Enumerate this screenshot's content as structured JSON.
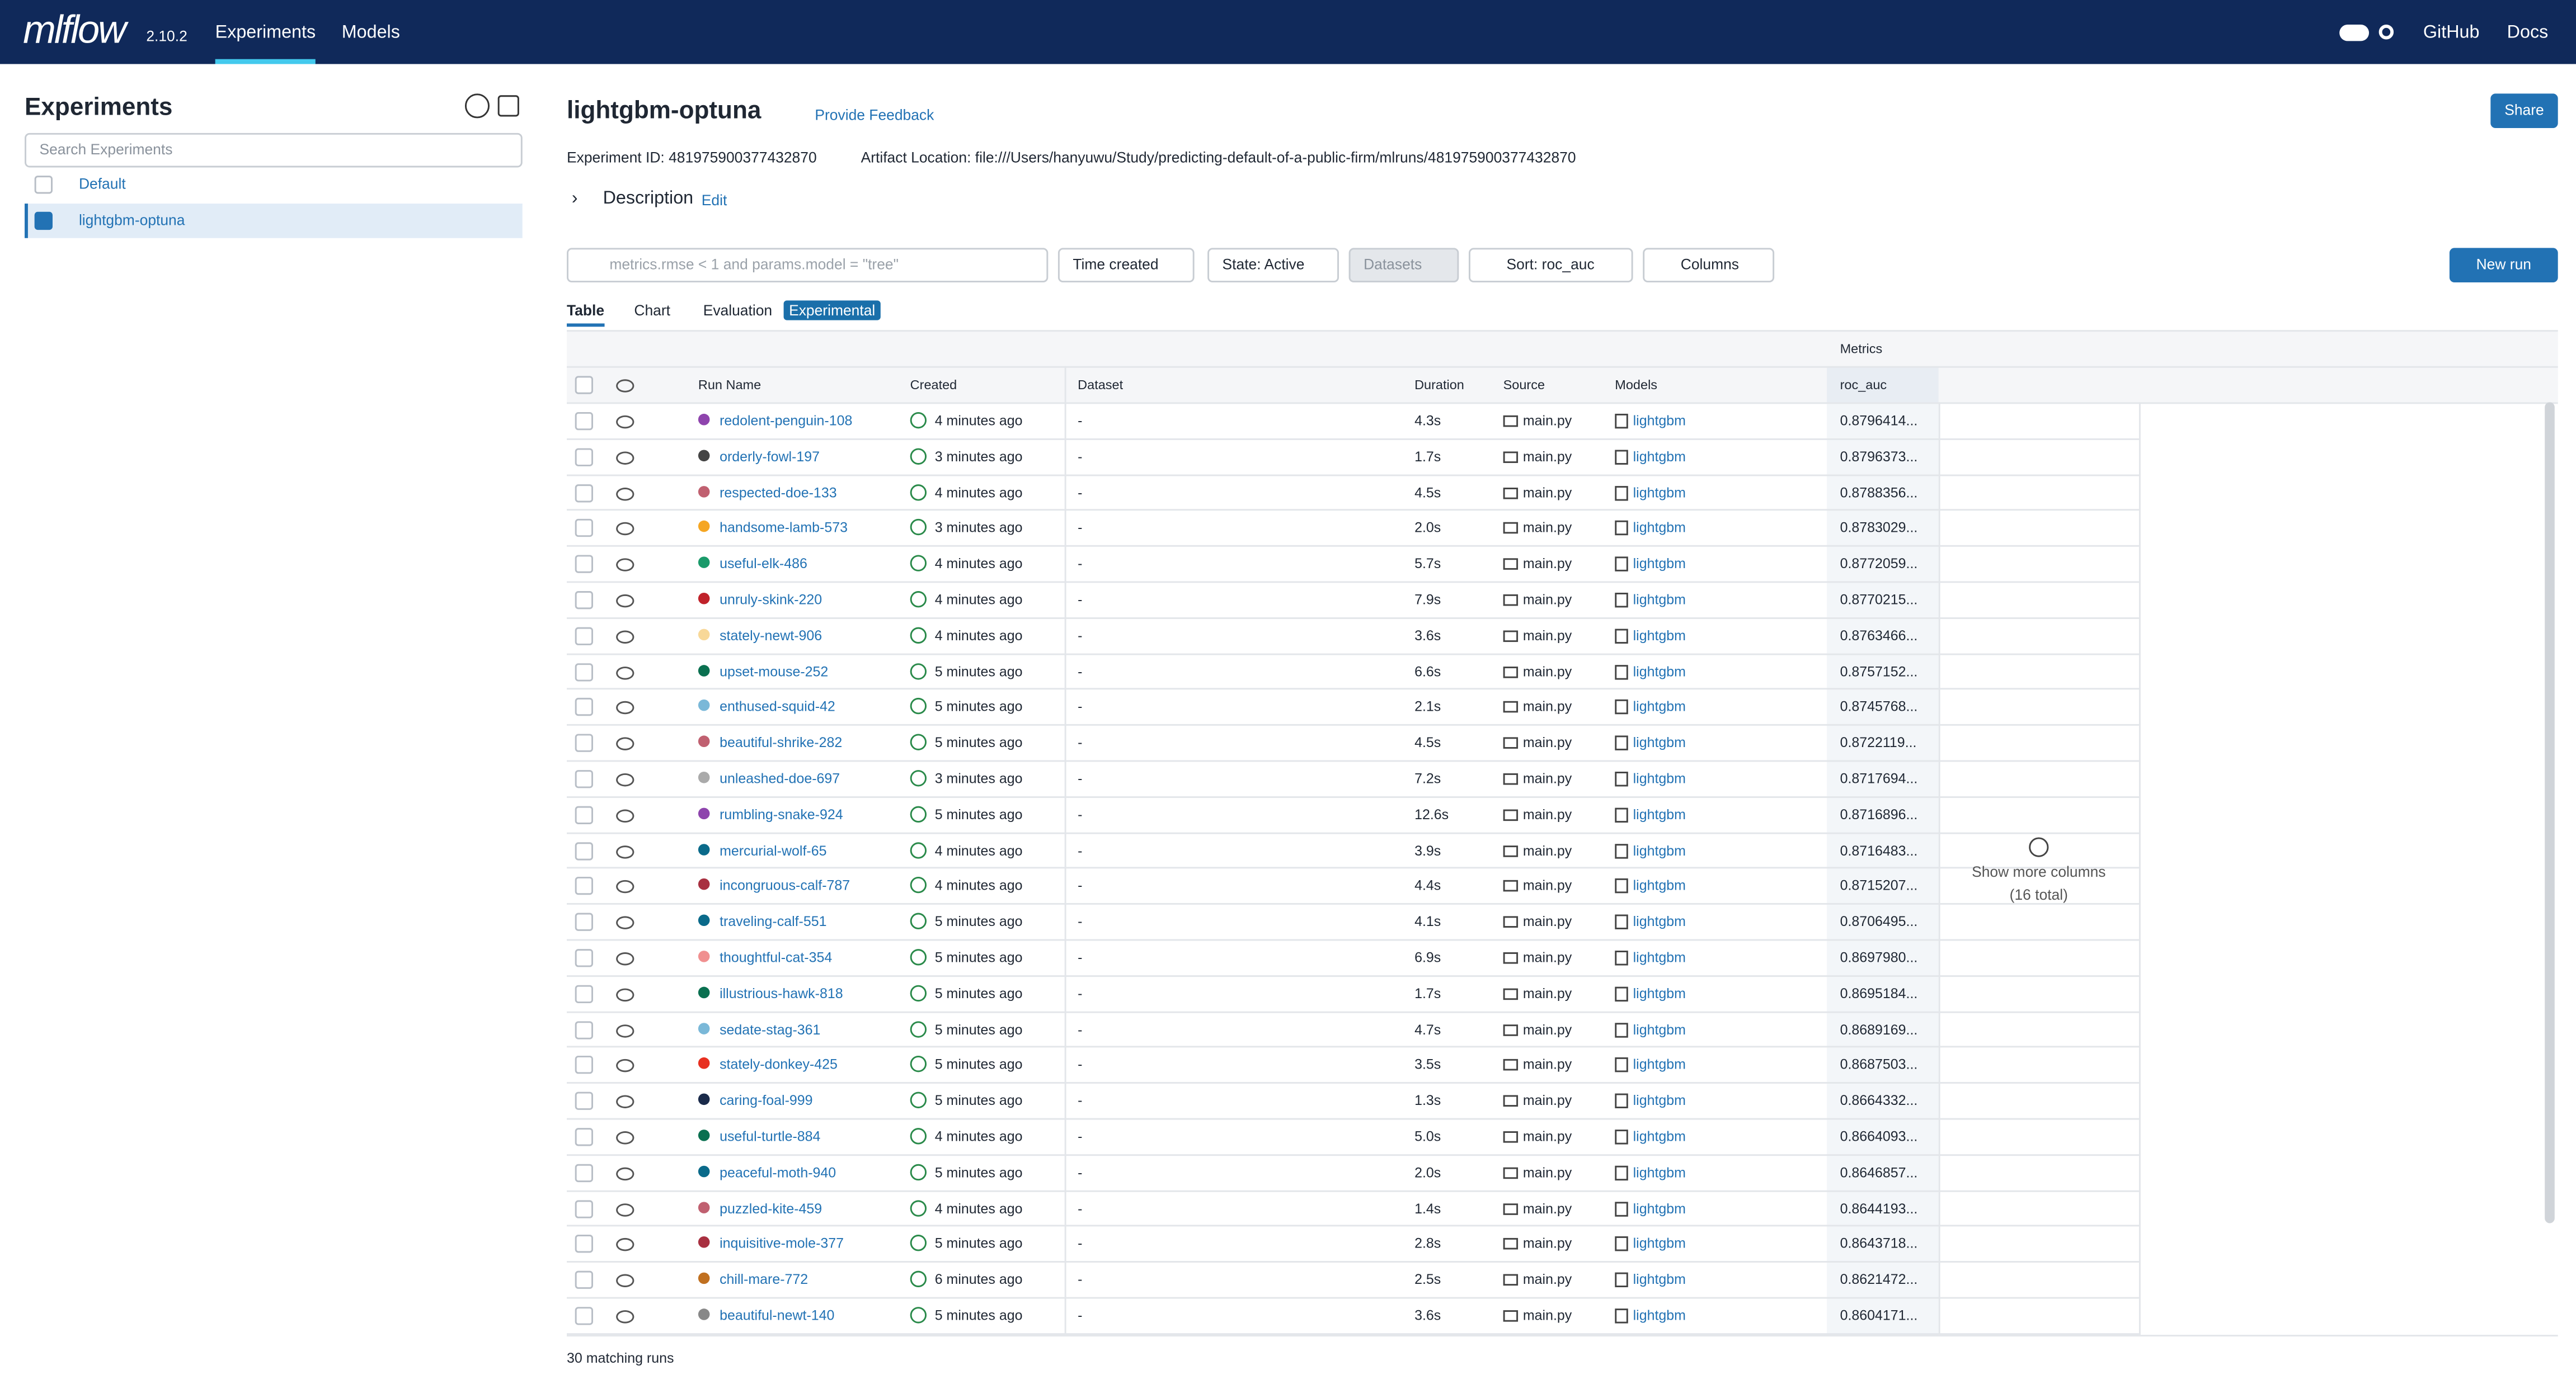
{
  "nav": {
    "logo": "mlflow",
    "version": "2.10.2",
    "links": [
      "Experiments",
      "Models"
    ],
    "right": [
      "GitHub",
      "Docs"
    ]
  },
  "sidebar": {
    "title": "Experiments",
    "search_placeholder": "Search Experiments",
    "experiments": [
      "Default",
      "lightgbm-optuna"
    ]
  },
  "main": {
    "title": "lightgbm-optuna",
    "feedback": "Provide Feedback",
    "share": "Share",
    "experiment_id": "Experiment ID: 481975900377432870",
    "artifact_location": "Artifact Location: file:///Users/hanyuwu/Study/predicting-default-of-a-public-firm/mlruns/481975900377432870",
    "description": "Description",
    "edit": "Edit",
    "search_placeholder": "metrics.rmse < 1 and params.model = \"tree\"",
    "filters": [
      "Time created",
      "State: Active",
      "Datasets",
      "Sort: roc_auc",
      "Columns"
    ],
    "new_run": "New run",
    "tabs": [
      "Table",
      "Chart",
      "Evaluation"
    ],
    "badge": "Experimental"
  },
  "table": {
    "group_header": "Metrics",
    "columns": [
      "Run Name",
      "Created",
      "Dataset",
      "Duration",
      "Source",
      "Models",
      "roc_auc"
    ],
    "rows": [
      [
        "redolent-penguin-108",
        "#8e44ad",
        "4 minutes ago",
        "-",
        "4.3s",
        "main.py",
        "lightgbm",
        "0.8796414..."
      ],
      [
        "orderly-fowl-197",
        "#444444",
        "3 minutes ago",
        "-",
        "1.7s",
        "main.py",
        "lightgbm",
        "0.8796373..."
      ],
      [
        "respected-doe-133",
        "#c06070",
        "4 minutes ago",
        "-",
        "4.5s",
        "main.py",
        "lightgbm",
        "0.8788356..."
      ],
      [
        "handsome-lamb-573",
        "#f5a623",
        "3 minutes ago",
        "-",
        "2.0s",
        "main.py",
        "lightgbm",
        "0.8783029..."
      ],
      [
        "useful-elk-486",
        "#1a9a6a",
        "4 minutes ago",
        "-",
        "5.7s",
        "main.py",
        "lightgbm",
        "0.8772059..."
      ],
      [
        "unruly-skink-220",
        "#c0222a",
        "4 minutes ago",
        "-",
        "7.9s",
        "main.py",
        "lightgbm",
        "0.8770215..."
      ],
      [
        "stately-newt-906",
        "#f8d898",
        "4 minutes ago",
        "-",
        "3.6s",
        "main.py",
        "lightgbm",
        "0.8763466..."
      ],
      [
        "upset-mouse-252",
        "#0a7050",
        "5 minutes ago",
        "-",
        "6.6s",
        "main.py",
        "lightgbm",
        "0.8757152..."
      ],
      [
        "enthused-squid-42",
        "#7ab8d8",
        "5 minutes ago",
        "-",
        "2.1s",
        "main.py",
        "lightgbm",
        "0.8745768..."
      ],
      [
        "beautiful-shrike-282",
        "#c06070",
        "5 minutes ago",
        "-",
        "4.5s",
        "main.py",
        "lightgbm",
        "0.8722119..."
      ],
      [
        "unleashed-doe-697",
        "#aaaaaa",
        "3 minutes ago",
        "-",
        "7.2s",
        "main.py",
        "lightgbm",
        "0.8717694..."
      ],
      [
        "rumbling-snake-924",
        "#8e44ad",
        "5 minutes ago",
        "-",
        "12.6s",
        "main.py",
        "lightgbm",
        "0.8716896..."
      ],
      [
        "mercurial-wolf-65",
        "#0a6a8a",
        "4 minutes ago",
        "-",
        "3.9s",
        "main.py",
        "lightgbm",
        "0.8716483..."
      ],
      [
        "incongruous-calf-787",
        "#a83040",
        "4 minutes ago",
        "-",
        "4.4s",
        "main.py",
        "lightgbm",
        "0.8715207..."
      ],
      [
        "traveling-calf-551",
        "#0a6a8a",
        "5 minutes ago",
        "-",
        "4.1s",
        "main.py",
        "lightgbm",
        "0.8706495..."
      ],
      [
        "thoughtful-cat-354",
        "#f09090",
        "5 minutes ago",
        "-",
        "6.9s",
        "main.py",
        "lightgbm",
        "0.8697980..."
      ],
      [
        "illustrious-hawk-818",
        "#0a7050",
        "5 minutes ago",
        "-",
        "1.7s",
        "main.py",
        "lightgbm",
        "0.8695184..."
      ],
      [
        "sedate-stag-361",
        "#7ab8d8",
        "5 minutes ago",
        "-",
        "4.7s",
        "main.py",
        "lightgbm",
        "0.8689169..."
      ],
      [
        "stately-donkey-425",
        "#e83020",
        "5 minutes ago",
        "-",
        "3.5s",
        "main.py",
        "lightgbm",
        "0.8687503..."
      ],
      [
        "caring-foal-999",
        "#1a2a4a",
        "5 minutes ago",
        "-",
        "1.3s",
        "main.py",
        "lightgbm",
        "0.8664332..."
      ],
      [
        "useful-turtle-884",
        "#0a7050",
        "4 minutes ago",
        "-",
        "5.0s",
        "main.py",
        "lightgbm",
        "0.8664093..."
      ],
      [
        "peaceful-moth-940",
        "#0a6a8a",
        "5 minutes ago",
        "-",
        "2.0s",
        "main.py",
        "lightgbm",
        "0.8646857..."
      ],
      [
        "puzzled-kite-459",
        "#c06070",
        "4 minutes ago",
        "-",
        "1.4s",
        "main.py",
        "lightgbm",
        "0.8644193..."
      ],
      [
        "inquisitive-mole-377",
        "#a83040",
        "5 minutes ago",
        "-",
        "2.8s",
        "main.py",
        "lightgbm",
        "0.8643718..."
      ],
      [
        "chill-mare-772",
        "#c07020",
        "6 minutes ago",
        "-",
        "2.5s",
        "main.py",
        "lightgbm",
        "0.8621472..."
      ],
      [
        "beautiful-newt-140",
        "#888888",
        "5 minutes ago",
        "-",
        "3.6s",
        "main.py",
        "lightgbm",
        "0.8604171..."
      ]
    ],
    "show_more": "Show more columns",
    "total": "(16 total)",
    "footer": "30 matching runs"
  }
}
